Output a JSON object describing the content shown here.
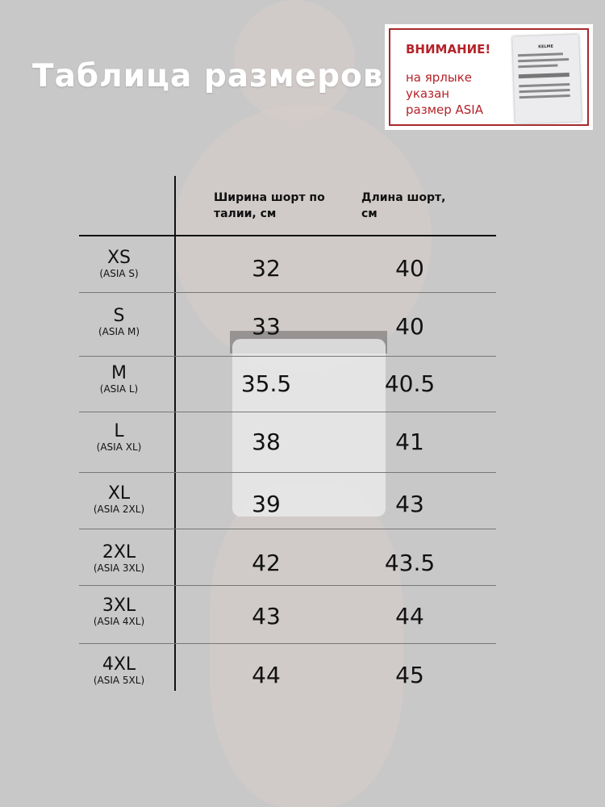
{
  "title": "Таблица размеров",
  "notice": {
    "heading": "ВНИМАНИЕ!",
    "lines": [
      "на ярлыке",
      "указан",
      "размер ASIA"
    ],
    "tag_brand": "KELME",
    "accent": "#b4232a"
  },
  "table": {
    "headers": [
      "Ширина шорт по талии, см",
      "Длина шорт, см"
    ],
    "rows": [
      {
        "size": "XS",
        "asia": "(ASIA S)",
        "waist": "32",
        "length": "40"
      },
      {
        "size": "S",
        "asia": "(ASIA M)",
        "waist": "33",
        "length": "40"
      },
      {
        "size": "M",
        "asia": "(ASIA L)",
        "waist": "35.5",
        "length": "40.5"
      },
      {
        "size": "L",
        "asia": "(ASIA XL)",
        "waist": "38",
        "length": "41"
      },
      {
        "size": "XL",
        "asia": "(ASIA 2XL)",
        "waist": "39",
        "length": "43"
      },
      {
        "size": "2XL",
        "asia": "(ASIA 3XL)",
        "waist": "42",
        "length": "43.5"
      },
      {
        "size": "3XL",
        "asia": "(ASIA 4XL)",
        "waist": "43",
        "length": "44"
      },
      {
        "size": "4XL",
        "asia": "(ASIA 5XL)",
        "waist": "44",
        "length": "45"
      }
    ]
  }
}
